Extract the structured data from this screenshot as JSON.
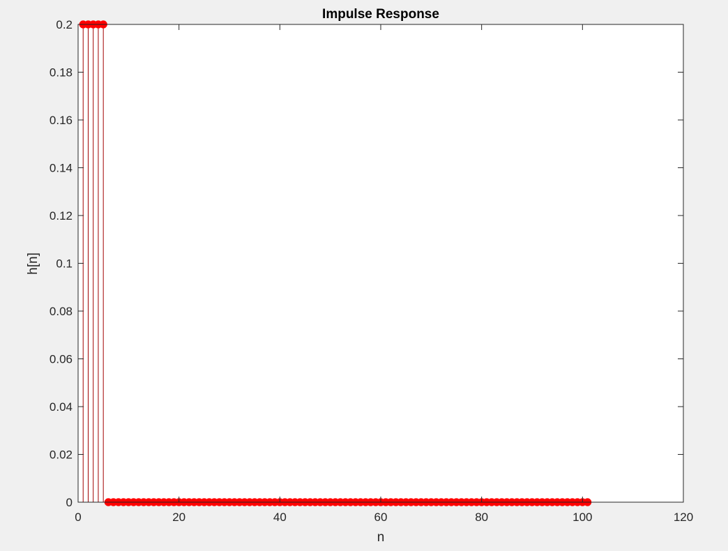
{
  "chart_data": {
    "type": "stem",
    "title": "Impulse Response",
    "xlabel": "n",
    "ylabel": "h[n]",
    "xlim": [
      0,
      120
    ],
    "ylim": [
      0,
      0.2
    ],
    "xticks": [
      0,
      20,
      40,
      60,
      80,
      100,
      120
    ],
    "yticks": [
      0,
      0.02,
      0.04,
      0.06,
      0.08,
      0.1,
      0.12,
      0.14,
      0.16,
      0.18,
      0.2
    ],
    "xtick_labels": [
      "0",
      "20",
      "40",
      "60",
      "80",
      "100",
      "120"
    ],
    "ytick_labels": [
      "0",
      "0.02",
      "0.04",
      "0.06",
      "0.08",
      "0.1",
      "0.12",
      "0.14",
      "0.16",
      "0.18",
      "0.2"
    ],
    "grid": false,
    "series": [
      {
        "n_start": 1,
        "n_end": 101,
        "nonzero": [
          {
            "n": 1,
            "value": 0.2
          },
          {
            "n": 2,
            "value": 0.2
          },
          {
            "n": 3,
            "value": 0.2
          },
          {
            "n": 4,
            "value": 0.2
          },
          {
            "n": 5,
            "value": 0.2
          }
        ],
        "default_value": 0,
        "color": "#ff0000",
        "stem_color": "#a00000",
        "marker": "filled-circle"
      }
    ]
  },
  "colors": {
    "figure_bg": "#f0f0f0",
    "axes_bg": "#ffffff",
    "axis_line": "#262626"
  }
}
